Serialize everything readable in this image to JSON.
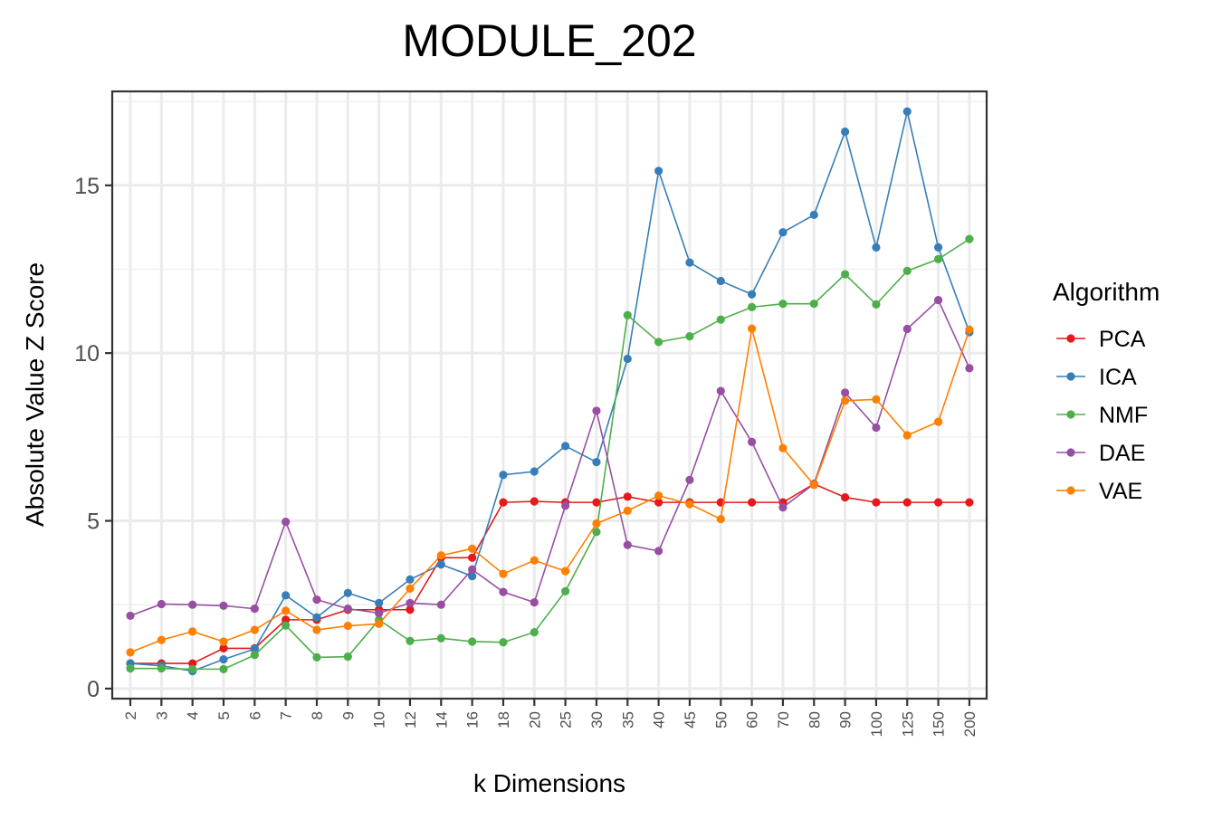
{
  "chart_data": {
    "type": "line",
    "title": "MODULE_202",
    "xlabel": "k Dimensions",
    "ylabel": "Absolute Value Z Score",
    "categories": [
      "2",
      "3",
      "4",
      "5",
      "6",
      "7",
      "8",
      "9",
      "10",
      "12",
      "14",
      "16",
      "18",
      "20",
      "25",
      "30",
      "35",
      "40",
      "45",
      "50",
      "60",
      "70",
      "80",
      "90",
      "100",
      "125",
      "150",
      "200"
    ],
    "ylim": [
      -0.3,
      17.8
    ],
    "yticks": [
      0,
      5,
      10,
      15
    ],
    "grid": true,
    "legend": {
      "title": "Algorithm",
      "placement": "right"
    },
    "series": [
      {
        "name": "PCA",
        "color": "#E41A1C",
        "values": [
          0.75,
          0.75,
          0.75,
          1.2,
          1.2,
          2.05,
          2.05,
          2.35,
          2.35,
          2.35,
          3.9,
          3.9,
          5.55,
          5.58,
          5.55,
          5.55,
          5.72,
          5.55,
          5.55,
          5.55,
          5.55,
          5.55,
          6.1,
          5.7,
          5.55,
          5.55,
          5.55,
          5.55
        ]
      },
      {
        "name": "ICA",
        "color": "#377EB8",
        "values": [
          0.75,
          0.68,
          0.52,
          0.87,
          1.18,
          2.78,
          2.12,
          2.85,
          2.55,
          3.25,
          3.7,
          3.35,
          6.37,
          6.47,
          7.23,
          6.75,
          9.83,
          15.43,
          12.7,
          12.15,
          11.75,
          13.6,
          14.12,
          16.6,
          13.15,
          17.2,
          13.15,
          10.62
        ]
      },
      {
        "name": "NMF",
        "color": "#4DAF4A",
        "values": [
          0.6,
          0.6,
          0.58,
          0.58,
          1.0,
          1.88,
          0.93,
          0.95,
          2.05,
          1.42,
          1.5,
          1.4,
          1.38,
          1.68,
          2.9,
          4.67,
          11.13,
          10.33,
          10.5,
          11.0,
          11.37,
          11.47,
          11.47,
          12.35,
          11.45,
          12.45,
          12.8,
          13.4
        ]
      },
      {
        "name": "DAE",
        "color": "#984EA3",
        "values": [
          2.17,
          2.52,
          2.5,
          2.47,
          2.38,
          4.97,
          2.65,
          2.38,
          2.25,
          2.55,
          2.5,
          3.55,
          2.88,
          2.57,
          5.45,
          8.28,
          4.28,
          4.1,
          6.22,
          8.87,
          7.35,
          5.4,
          6.1,
          8.82,
          7.78,
          10.72,
          11.58,
          9.55
        ]
      },
      {
        "name": "VAE",
        "color": "#FF7F00",
        "values": [
          1.08,
          1.45,
          1.7,
          1.4,
          1.75,
          2.32,
          1.75,
          1.87,
          1.93,
          2.98,
          3.97,
          4.17,
          3.42,
          3.82,
          3.5,
          4.92,
          5.3,
          5.75,
          5.5,
          5.05,
          10.73,
          7.17,
          6.07,
          8.58,
          8.62,
          7.55,
          7.95,
          10.7
        ]
      }
    ]
  }
}
